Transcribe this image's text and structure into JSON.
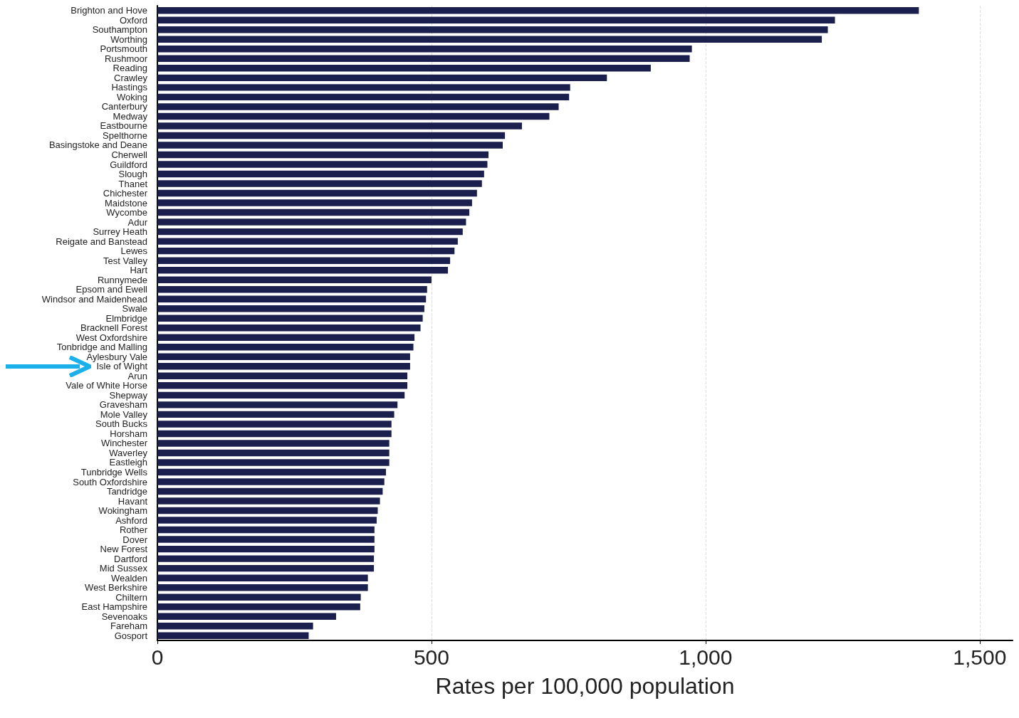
{
  "chart_data": {
    "type": "bar",
    "orientation": "horizontal",
    "xlabel": "Rates per 100,000 population",
    "categories": [
      "Brighton and Hove",
      "Oxford",
      "Southampton",
      "Worthing",
      "Portsmouth",
      "Rushmoor",
      "Reading",
      "Crawley",
      "Hastings",
      "Woking",
      "Canterbury",
      "Medway",
      "Eastbourne",
      "Spelthorne",
      "Basingstoke and Deane",
      "Cherwell",
      "Guildford",
      "Slough",
      "Thanet",
      "Chichester",
      "Maidstone",
      "Wycombe",
      "Adur",
      "Surrey Heath",
      "Reigate and Banstead",
      "Lewes",
      "Test Valley",
      "Hart",
      "Runnymede",
      "Epsom and Ewell",
      "Windsor and Maidenhead",
      "Swale",
      "Elmbridge",
      "Bracknell Forest",
      "West Oxfordshire",
      "Tonbridge and Malling",
      "Aylesbury Vale",
      "Isle of Wight",
      "Arun",
      "Vale of White Horse",
      "Shepway",
      "Gravesham",
      "Mole Valley",
      "South Bucks",
      "Horsham",
      "Winchester",
      "Waverley",
      "Eastleigh",
      "Tunbridge Wells",
      "South Oxfordshire",
      "Tandridge",
      "Havant",
      "Wokingham",
      "Ashford",
      "Rother",
      "Dover",
      "New Forest",
      "Dartford",
      "Mid Sussex",
      "Wealden",
      "West Berkshire",
      "Chiltern",
      "East Hampshire",
      "Sevenoaks",
      "Fareham",
      "Gosport"
    ],
    "values": [
      1389,
      1236,
      1223,
      1212,
      975,
      971,
      900,
      820,
      753,
      751,
      732,
      715,
      665,
      634,
      630,
      604,
      602,
      596,
      592,
      583,
      574,
      569,
      563,
      557,
      548,
      542,
      534,
      530,
      500,
      492,
      490,
      487,
      484,
      480,
      469,
      467,
      461,
      461,
      456,
      456,
      451,
      438,
      432,
      427,
      427,
      423,
      423,
      423,
      417,
      414,
      411,
      406,
      402,
      400,
      396,
      396,
      396,
      395,
      395,
      384,
      384,
      371,
      370,
      326,
      284,
      276
    ],
    "color": "#1a1f4e",
    "xlim": [
      0,
      1560
    ],
    "xticks": [
      0,
      {
        "value": 500,
        "label": "500"
      },
      {
        "value": 1000,
        "label": "1,000"
      },
      {
        "value": 1500,
        "label": "1,500"
      }
    ],
    "grid": "x"
  }
}
